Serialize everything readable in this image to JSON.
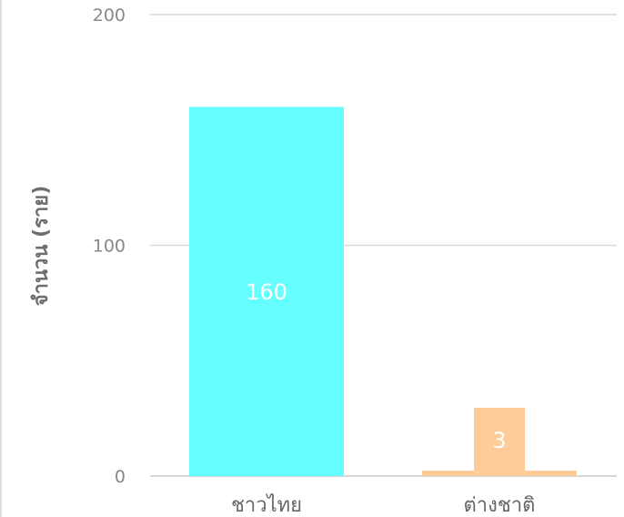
{
  "chart_data": {
    "type": "bar",
    "title": "",
    "xlabel": "",
    "ylabel": "จำนวน (ราย)",
    "ylim": [
      0,
      200
    ],
    "yticks": [
      0,
      100,
      200
    ],
    "grid": true,
    "categories": [
      "ชาวไทย",
      "ต่างชาติ"
    ],
    "values": [
      160,
      3
    ],
    "data_labels": [
      "160",
      "3"
    ],
    "colors": [
      "#66ffff",
      "#ffcc99"
    ]
  }
}
